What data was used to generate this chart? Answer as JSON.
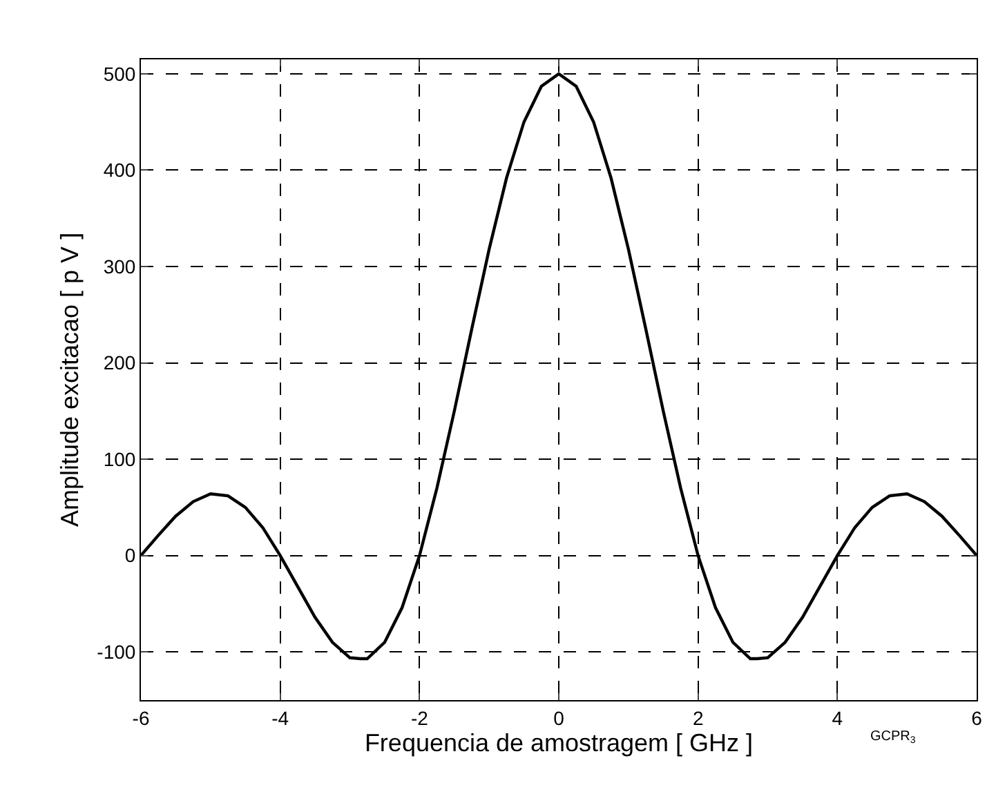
{
  "chart_data": {
    "type": "line",
    "xlabel": "Frequencia de amostragem [ GHz ]",
    "ylabel": "Amplitude excitacao [ p V ]",
    "annotations": [
      "GCPR$_{3}$"
    ],
    "x": [
      -6,
      -5.75,
      -5.5,
      -5.25,
      -5,
      -4.75,
      -4.5,
      -4.25,
      -4,
      -3.75,
      -3.5,
      -3.25,
      -3,
      -2.85,
      -2.75,
      -2.5,
      -2.25,
      -2,
      -1.75,
      -1.5,
      -1.25,
      -1,
      -0.75,
      -0.5,
      -0.25,
      0,
      0.25,
      0.5,
      0.75,
      1,
      1.25,
      1.5,
      1.75,
      2,
      2.25,
      2.5,
      2.75,
      2.85,
      3,
      3.25,
      3.5,
      3.75,
      4,
      4.25,
      4.5,
      4.75,
      5,
      5.25,
      5.5,
      5.75,
      6
    ],
    "series": [
      {
        "color": "#000000",
        "values": [
          0,
          21,
          41,
          56,
          64,
          62,
          50,
          29,
          0,
          -32,
          -64,
          -90,
          -106,
          -107,
          -107,
          -90,
          -54,
          0,
          70,
          150,
          235,
          318,
          392,
          450,
          487,
          500,
          487,
          450,
          392,
          318,
          235,
          150,
          70,
          0,
          -54,
          -90,
          -107,
          -107,
          -106,
          -90,
          -64,
          -32,
          0,
          29,
          50,
          62,
          64,
          56,
          41,
          21,
          0
        ]
      }
    ],
    "xlim": [
      -6,
      6
    ],
    "xticks": [
      -6,
      -4,
      -2,
      0,
      2,
      4,
      6
    ],
    "ylim": [
      -150,
      515
    ],
    "yticks": [
      -100,
      0,
      100,
      200,
      300,
      400,
      500
    ],
    "grid": true,
    "line_style": "solid",
    "marker": "none"
  }
}
